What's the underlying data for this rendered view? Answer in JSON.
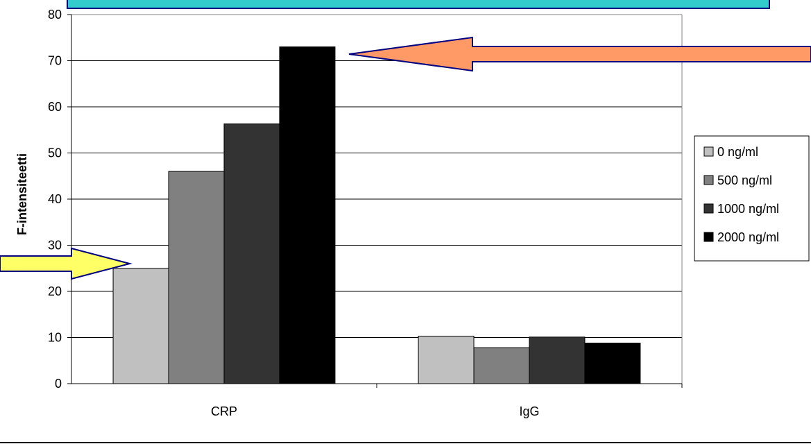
{
  "chart_data": {
    "type": "bar",
    "title": "",
    "xlabel": "",
    "ylabel": "F-intensiteetti",
    "ylim": [
      0,
      80
    ],
    "yticks": [
      0,
      10,
      20,
      30,
      40,
      50,
      60,
      70,
      80
    ],
    "grid": true,
    "legend_position": "right",
    "categories": [
      "CRP",
      "IgG"
    ],
    "series": [
      {
        "name": "0 ng/ml",
        "color": "#c0c0c0",
        "values": [
          25,
          10.3
        ]
      },
      {
        "name": "500 ng/ml",
        "color": "#808080",
        "values": [
          46,
          7.8
        ]
      },
      {
        "name": "1000 ng/ml",
        "color": "#333333",
        "values": [
          56.3,
          10.1
        ]
      },
      {
        "name": "2000 ng/ml",
        "color": "#000000",
        "values": [
          73,
          8.8
        ]
      }
    ],
    "annotations": [
      {
        "shape": "arrow-left",
        "color": "#ff9966",
        "points_to": "CRP 2000 ng/ml"
      },
      {
        "shape": "arrow-right",
        "color": "#ffff66",
        "points_to": "CRP 0 ng/ml"
      },
      {
        "shape": "banner",
        "color": "#33cccc"
      }
    ]
  }
}
